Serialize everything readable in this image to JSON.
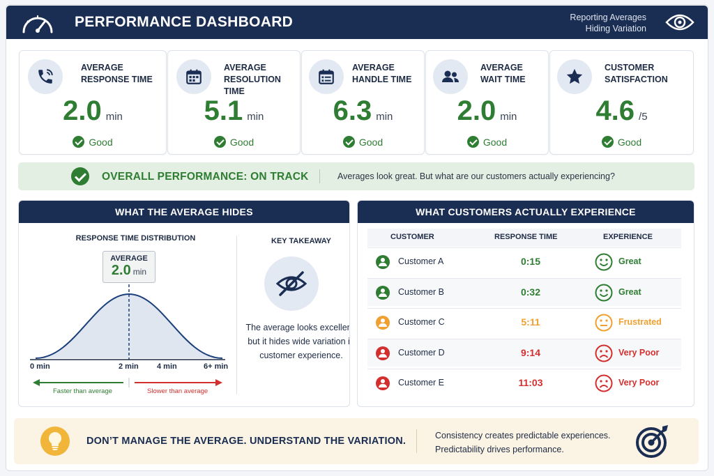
{
  "header": {
    "title": "PERFORMANCE DASHBOARD",
    "subtitle_line1": "Reporting Averages",
    "subtitle_line2": "Hiding Variation",
    "left_icon": "speedometer-icon",
    "right_icon": "eye-icon"
  },
  "metrics": [
    {
      "label1": "AVERAGE",
      "label2": "RESPONSE TIME",
      "value": "2.0",
      "unit": "min",
      "status": "Good",
      "icon": "phone-icon"
    },
    {
      "label1": "AVERAGE",
      "label2": "RESOLUTION TIME",
      "value": "5.1",
      "unit": "min",
      "status": "Good",
      "icon": "calendar-icon"
    },
    {
      "label1": "AVERAGE",
      "label2": "HANDLE TIME",
      "value": "6.3",
      "unit": "min",
      "status": "Good",
      "icon": "calendar-list-icon"
    },
    {
      "label1": "AVERAGE",
      "label2": "WAIT TIME",
      "value": "2.0",
      "unit": "min",
      "status": "Good",
      "icon": "users-icon"
    },
    {
      "label1": "CUSTOMER",
      "label2": "SATISFACTION",
      "value": "4.6",
      "unit": "/5",
      "status": "Good",
      "icon": "star-icon"
    }
  ],
  "overall": {
    "status": "OVERALL PERFORMANCE: ON TRACK",
    "message": "Averages look great. But what are our customers actually experiencing?"
  },
  "left_panel": {
    "title": "WHAT THE AVERAGE HIDES",
    "chart_title": "RESPONSE TIME DISTRIBUTION",
    "avg_label": "AVERAGE",
    "avg_value": "2.0",
    "avg_unit": "min",
    "ticks": [
      "0 min",
      "2 min",
      "4 min",
      "6+ min"
    ],
    "faster": "Faster than average",
    "slower": "Slower than average",
    "takeaway_title": "KEY TAKEAWAY",
    "takeaway_text": "The average looks excellent, but it hides wide variation in customer experience.",
    "takeaway_icon": "eye-slash-icon"
  },
  "right_panel": {
    "title": "WHAT CUSTOMERS ACTUALLY EXPERIENCE",
    "columns": [
      "CUSTOMER",
      "RESPONSE TIME",
      "EXPERIENCE"
    ],
    "rows": [
      {
        "customer": "Customer A",
        "time": "0:15",
        "experience": "Great",
        "color": "#2e7d32",
        "face": "smile"
      },
      {
        "customer": "Customer B",
        "time": "0:32",
        "experience": "Great",
        "color": "#2e7d32",
        "face": "smile"
      },
      {
        "customer": "Customer C",
        "time": "5:11",
        "experience": "Frustrated",
        "color": "#f0a030",
        "face": "neutral"
      },
      {
        "customer": "Customer D",
        "time": "9:14",
        "experience": "Very Poor",
        "color": "#d32f2f",
        "face": "frown"
      },
      {
        "customer": "Customer E",
        "time": "11:03",
        "experience": "Very Poor",
        "color": "#d32f2f",
        "face": "frown"
      }
    ]
  },
  "banner": {
    "headline": "DON’T MANAGE THE AVERAGE. UNDERSTAND THE VARIATION.",
    "line1": "Consistency creates predictable experiences.",
    "line2": "Predictability drives performance.",
    "left_icon": "lightbulb-icon",
    "right_icon": "target-icon"
  },
  "colors": {
    "navy": "#1a2d52",
    "good": "#2e7d32",
    "warn": "#f0a030",
    "bad": "#d32f2f"
  }
}
